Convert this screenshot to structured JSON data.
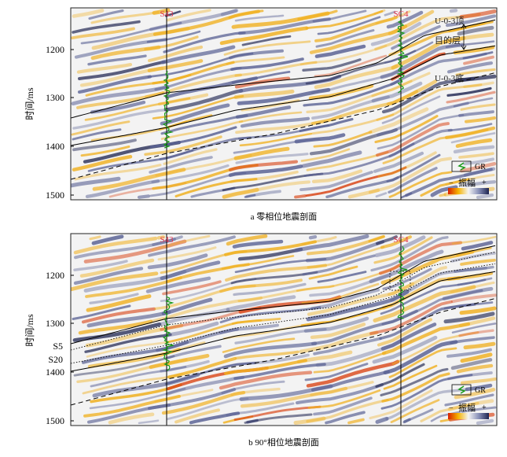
{
  "panels": [
    {
      "id": "a",
      "caption": "a  零相位地震剖面",
      "ylabel": "时间/ms",
      "yticks": [
        "1200",
        "1300",
        "1400",
        "1500"
      ],
      "wells": [
        "S43",
        "SC4"
      ],
      "annotations": {
        "top": "U-0-3顶",
        "target": "目的层",
        "bottom": "U-0-3底"
      },
      "legend": {
        "log": "GR",
        "minus": "−",
        "amp": "振幅",
        "plus": "+"
      }
    },
    {
      "id": "b",
      "caption": "b  90°相位地震剖面",
      "ylabel": "时间/ms",
      "yticks": [
        "1200",
        "1300",
        "1400",
        "1500"
      ],
      "side_labels": [
        "S5",
        "S20"
      ],
      "wells": [
        "S43",
        "SC4"
      ],
      "legend": {
        "log": "GR",
        "minus": "−",
        "amp": "振幅",
        "plus": "+"
      }
    }
  ],
  "colors": {
    "well_label": "#e0334d",
    "gr_log": "#1a9a1a",
    "positive": "#2c3566",
    "negative": "#e8a020"
  }
}
